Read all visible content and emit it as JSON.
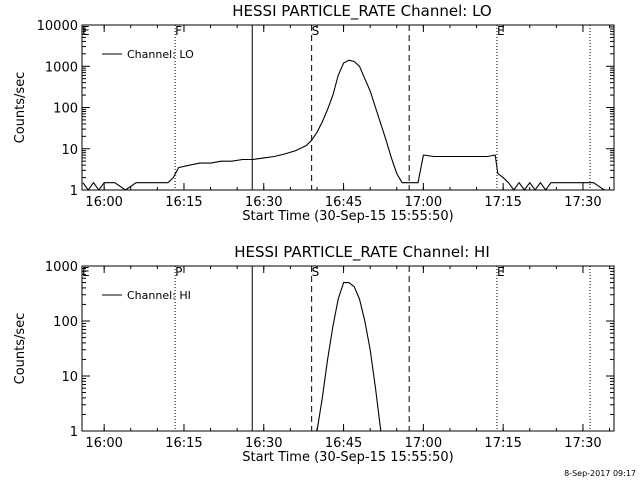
{
  "chart_data": [
    {
      "type": "line",
      "title": "HESSI PARTICLE_RATE Channel: LO",
      "xlabel": "Start Time (30-Sep-15 15:55:50)",
      "ylabel": "Counts/sec",
      "yscale": "log",
      "xlim": [
        "15:55:50",
        "17:35:50"
      ],
      "ylim": [
        1,
        10000
      ],
      "xticks": [
        "16:00",
        "16:15",
        "16:30",
        "16:45",
        "17:00",
        "17:15",
        "17:30"
      ],
      "yticks": [
        "1",
        "10",
        "100",
        "1000",
        "10000"
      ],
      "legend": {
        "placement": "top-left",
        "entries": [
          "Channel: LO"
        ]
      },
      "grid": false,
      "vertical_markers": [
        {
          "label": "E",
          "time": "15:55:50",
          "style": "dotted"
        },
        {
          "label": "F",
          "time": "16:13:20",
          "style": "dotted"
        },
        {
          "label": "",
          "time": "16:27:50",
          "style": "solid"
        },
        {
          "label": "S",
          "time": "16:39:00",
          "style": "dashed"
        },
        {
          "label": "",
          "time": "16:57:20",
          "style": "dashed"
        },
        {
          "label": "E",
          "time": "17:13:50",
          "style": "dotted"
        },
        {
          "label": "",
          "time": "17:31:20",
          "style": "dotted"
        }
      ],
      "series": [
        {
          "name": "Channel: LO",
          "x": [
            "15:56:00",
            "15:57:00",
            "15:58:00",
            "15:59:00",
            "16:00:00",
            "16:02:00",
            "16:04:00",
            "16:06:00",
            "16:08:00",
            "16:10:00",
            "16:12:00",
            "16:13:00",
            "16:14:00",
            "16:16:00",
            "16:18:00",
            "16:20:00",
            "16:22:00",
            "16:24:00",
            "16:26:00",
            "16:28:00",
            "16:30:00",
            "16:32:00",
            "16:34:00",
            "16:36:00",
            "16:38:00",
            "16:39:00",
            "16:40:00",
            "16:41:00",
            "16:42:00",
            "16:43:00",
            "16:44:00",
            "16:45:00",
            "16:46:00",
            "16:47:00",
            "16:48:00",
            "16:49:00",
            "16:50:00",
            "16:51:00",
            "16:52:00",
            "16:53:00",
            "16:54:00",
            "16:55:00",
            "16:56:00",
            "16:57:00",
            "16:58:00",
            "16:59:00",
            "17:00:00",
            "17:02:00",
            "17:04:00",
            "17:06:00",
            "17:08:00",
            "17:10:00",
            "17:12:00",
            "17:13:30",
            "17:14:00",
            "17:15:00",
            "17:16:00",
            "17:17:00",
            "17:18:00",
            "17:19:00",
            "17:20:00",
            "17:21:00",
            "17:22:00",
            "17:23:00",
            "17:24:00",
            "17:25:00",
            "17:26:00",
            "17:28:00",
            "17:30:00",
            "17:32:00",
            "17:34:00",
            "17:35:30"
          ],
          "y": [
            1.5,
            1,
            1.5,
            1,
            1.5,
            1.5,
            1,
            1.5,
            1.5,
            1.5,
            1.5,
            2,
            3.5,
            4,
            4.5,
            4.5,
            5,
            5,
            5.5,
            5.5,
            6,
            6.5,
            7.5,
            9,
            12,
            16,
            25,
            45,
            90,
            200,
            600,
            1200,
            1400,
            1300,
            1000,
            500,
            250,
            100,
            40,
            16,
            6,
            2.5,
            1.5,
            1.5,
            1.5,
            1.5,
            7,
            6.5,
            6.5,
            6.5,
            6.5,
            6.5,
            6.5,
            7,
            2.5,
            2,
            1.5,
            1,
            1.5,
            1,
            1.5,
            1,
            1.5,
            1,
            1.5,
            1.5,
            1.5,
            1.5,
            1.5,
            1.5,
            1,
            1
          ]
        }
      ]
    },
    {
      "type": "line",
      "title": "HESSI PARTICLE_RATE Channel: HI",
      "xlabel": "Start Time (30-Sep-15 15:55:50)",
      "ylabel": "Counts/sec",
      "yscale": "log",
      "xlim": [
        "15:55:50",
        "17:35:50"
      ],
      "ylim": [
        1,
        1000
      ],
      "xticks": [
        "16:00",
        "16:15",
        "16:30",
        "16:45",
        "17:00",
        "17:15",
        "17:30"
      ],
      "yticks": [
        "1",
        "10",
        "100",
        "1000"
      ],
      "legend": {
        "placement": "top-left",
        "entries": [
          "Channel: HI"
        ]
      },
      "grid": false,
      "vertical_markers": [
        {
          "label": "E",
          "time": "15:55:50",
          "style": "dotted"
        },
        {
          "label": "P",
          "time": "16:13:20",
          "style": "dotted"
        },
        {
          "label": "",
          "time": "16:27:50",
          "style": "solid"
        },
        {
          "label": "S",
          "time": "16:39:00",
          "style": "dashed"
        },
        {
          "label": "",
          "time": "16:57:20",
          "style": "dashed"
        },
        {
          "label": "E",
          "time": "17:13:50",
          "style": "dotted"
        },
        {
          "label": "",
          "time": "17:31:20",
          "style": "dotted"
        }
      ],
      "series": [
        {
          "name": "Channel: HI",
          "x": [
            "16:40:00",
            "16:41:00",
            "16:42:00",
            "16:43:00",
            "16:44:00",
            "16:45:00",
            "16:46:00",
            "16:47:00",
            "16:48:00",
            "16:49:00",
            "16:50:00",
            "16:51:00",
            "16:52:00"
          ],
          "y": [
            1,
            4,
            20,
            80,
            250,
            500,
            500,
            420,
            250,
            100,
            30,
            6,
            1
          ]
        }
      ]
    }
  ],
  "timestamp": "8-Sep-2017 09:17"
}
